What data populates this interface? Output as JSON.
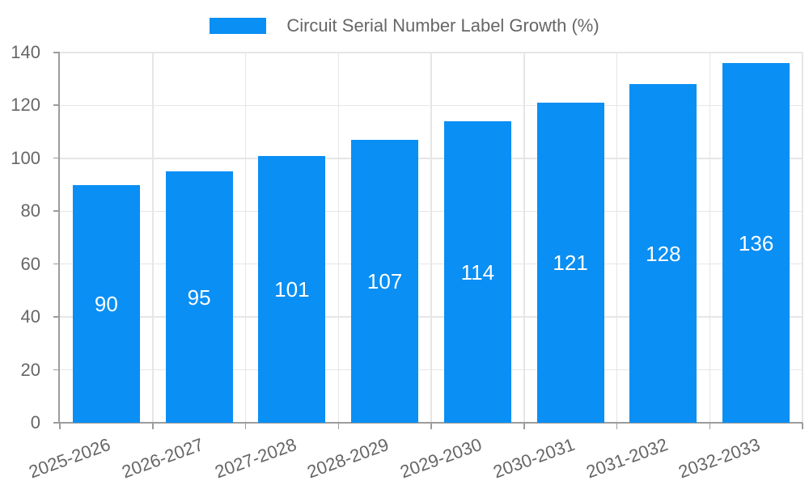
{
  "chart_data": {
    "type": "bar",
    "title": "Circuit Serial Number Label Growth (%)",
    "legend": {
      "position": "top",
      "label": "Circuit Serial Number Label Growth (%)"
    },
    "categories": [
      "2025-2026",
      "2026-2027",
      "2027-2028",
      "2028-2029",
      "2029-2030",
      "2030-2031",
      "2031-2032",
      "2032-2033"
    ],
    "series": [
      {
        "name": "Circuit Serial Number Label Growth (%)",
        "values": [
          90,
          95,
          101,
          107,
          114,
          121,
          128,
          136
        ]
      }
    ],
    "xlabel": "",
    "ylabel": "",
    "ylim": [
      0,
      140
    ],
    "yticks": [
      0,
      20,
      40,
      60,
      80,
      100,
      120,
      140
    ],
    "grid": true,
    "bar_value_labels_shown": true,
    "colors": {
      "bar": "#0a8ff4",
      "grid": "#e6e6e6",
      "axis": "#9c9c9c",
      "tick_text": "#666666",
      "bar_label": "#ffffff",
      "background": "#ffffff"
    }
  }
}
